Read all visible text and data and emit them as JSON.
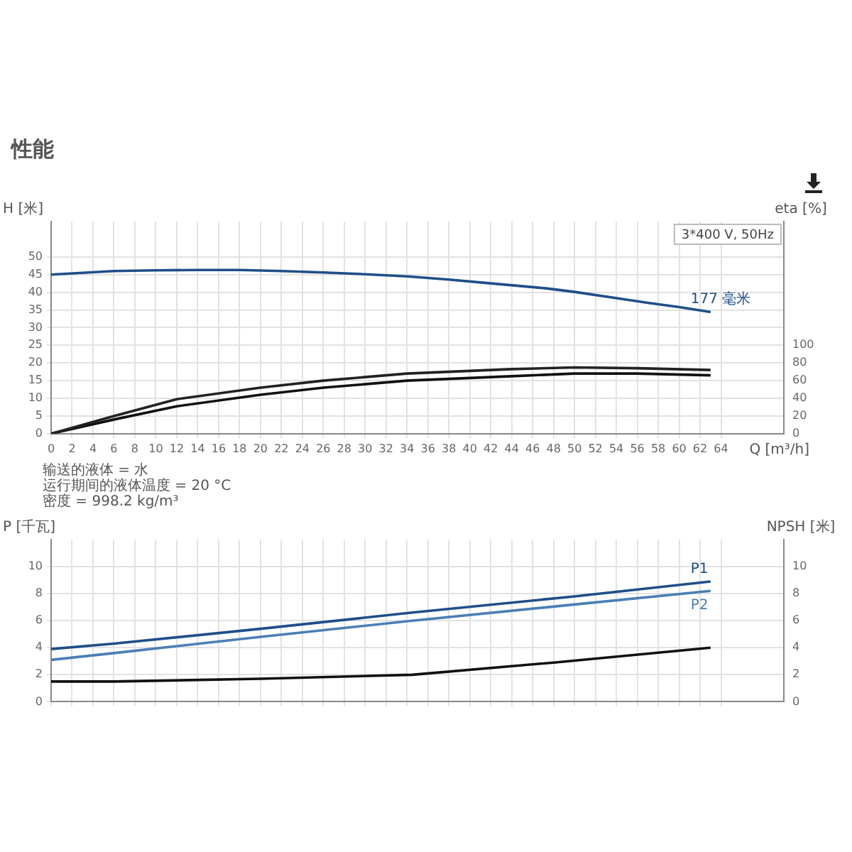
{
  "chart_data": [
    {
      "type": "line",
      "title": "性能",
      "subtitle": "3*400 V, 50Hz",
      "xlabel": "Q [m³/h]",
      "ylabel": "H [米]",
      "y2label": "eta [%]",
      "annotations": [
        "输送的液体 = 水",
        "运行期间的液体温度 = 20 °C",
        "密度 = 998.2 kg/m³"
      ],
      "xlim": [
        0,
        70
      ],
      "xticks": [
        0,
        2,
        4,
        6,
        8,
        10,
        12,
        14,
        16,
        18,
        20,
        22,
        24,
        26,
        28,
        30,
        32,
        34,
        36,
        38,
        40,
        42,
        44,
        46,
        48,
        50,
        52,
        54,
        56,
        58,
        60,
        62,
        64
      ],
      "ylim": [
        0,
        60
      ],
      "yticks": [
        0,
        5,
        10,
        15,
        20,
        25,
        30,
        35,
        40,
        45,
        50
      ],
      "y2lim": [
        0,
        240
      ],
      "y2ticks": [
        0,
        20,
        40,
        60,
        80,
        100
      ],
      "grid": true,
      "legend": false,
      "marker": "none",
      "line_style": "solid",
      "series": [
        {
          "name": "177 毫米",
          "color": "#1f4e89",
          "x": [
            0,
            6,
            10,
            14,
            18,
            22,
            26,
            30,
            34,
            38,
            42,
            47.3,
            50,
            53.6,
            57,
            60,
            63
          ],
          "values": [
            45,
            46,
            46.2,
            46.3,
            46.3,
            46,
            45.6,
            45.1,
            44.5,
            43.6,
            42.5,
            41.1,
            40.1,
            38.5,
            37,
            35.8,
            34.4
          ]
        },
        {
          "color": "#222222",
          "axis": "y2",
          "x": [
            0,
            6,
            12,
            20,
            26,
            34,
            44,
            50,
            56,
            63
          ],
          "values": [
            0,
            20,
            39,
            52,
            60,
            68,
            73,
            75,
            74,
            72
          ]
        },
        {
          "color": "#111111",
          "axis": "y2",
          "x": [
            0,
            6,
            12,
            20,
            26,
            34,
            44,
            50,
            56,
            63
          ],
          "values": [
            0,
            16,
            31,
            44,
            52,
            60,
            65,
            68,
            68,
            66
          ]
        }
      ]
    },
    {
      "type": "line",
      "ylabel": "P [千瓦]",
      "y2label": "NPSH [米]",
      "xlim": [
        0,
        70
      ],
      "xticks": [
        0,
        2,
        4,
        6,
        8,
        10,
        12,
        14,
        16,
        18,
        20,
        22,
        24,
        26,
        28,
        30,
        32,
        34,
        36,
        38,
        40,
        42,
        44,
        46,
        48,
        50,
        52,
        54,
        56,
        58,
        60,
        62,
        64
      ],
      "ylim": [
        0,
        12
      ],
      "yticks": [
        0,
        2,
        4,
        6,
        8,
        10
      ],
      "y2lim": [
        0,
        12
      ],
      "y2ticks": [
        0,
        2,
        4,
        6,
        8,
        10
      ],
      "tick_labels": "y",
      "grid": true,
      "legend": false,
      "marker": "none",
      "line_style": "solid",
      "series": [
        {
          "name": "P1",
          "color": "#1f4e89",
          "x": [
            0,
            6,
            20,
            34.5,
            50,
            63
          ],
          "values": [
            3.9,
            4.3,
            5.4,
            6.6,
            7.8,
            8.9
          ]
        },
        {
          "name": "P2",
          "color": "#4a7fb5",
          "x": [
            0,
            6,
            20,
            34.5,
            50,
            63
          ],
          "values": [
            3.1,
            3.6,
            4.8,
            6.0,
            7.2,
            8.2
          ]
        },
        {
          "color": "#111111",
          "axis": "y2",
          "x": [
            0,
            6,
            20,
            34.5,
            48,
            63
          ],
          "values": [
            1.5,
            1.5,
            1.7,
            2.0,
            2.9,
            4.0
          ]
        }
      ]
    }
  ]
}
